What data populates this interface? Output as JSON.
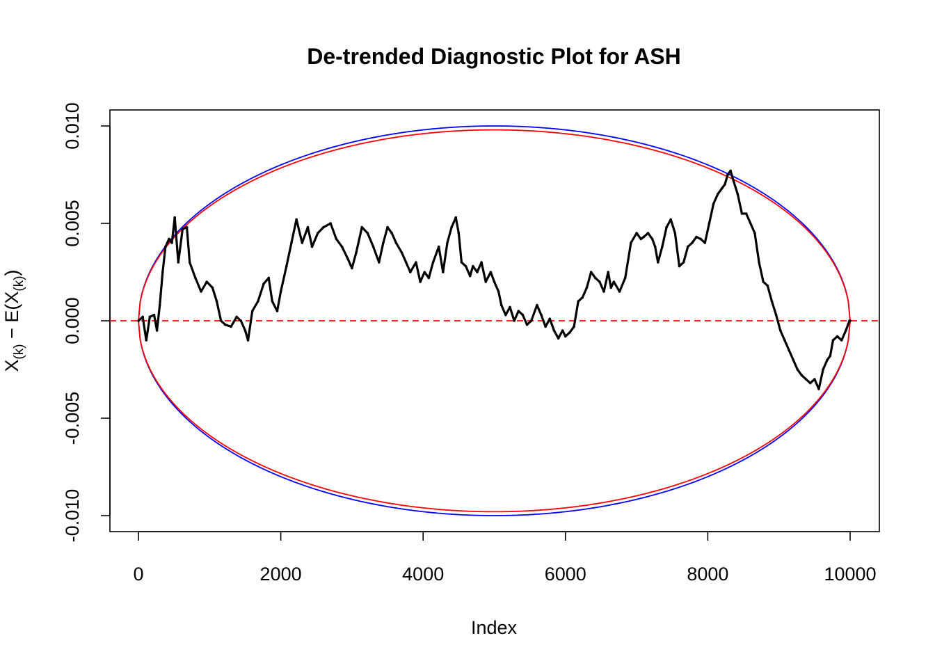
{
  "chart_data": {
    "type": "scatter",
    "title": "De-trended Diagnostic Plot for ASH",
    "xlabel": "Index",
    "ylabel": {
      "base": "X",
      "sub": "(k)",
      "minus": " − E(X",
      "sub2": "(k)",
      "close": ")"
    },
    "xlim": [
      -200,
      10200
    ],
    "ylim": [
      -0.0108,
      0.0108
    ],
    "x_ticks": [
      0,
      2000,
      4000,
      6000,
      8000,
      10000
    ],
    "x_tick_labels": [
      "0",
      "2000",
      "4000",
      "6000",
      "8000",
      "10000"
    ],
    "y_ticks": [
      -0.01,
      -0.005,
      0,
      0.005,
      0.01
    ],
    "y_tick_labels": [
      "-0.010",
      "-0.005",
      "0.000",
      "0.005",
      "0.010"
    ],
    "grid": false,
    "legend": "none",
    "n_points": 10000,
    "reference_line": {
      "y": 0,
      "style": "dashed",
      "color": "#ff0000"
    },
    "envelopes": [
      {
        "color": "#0000ff",
        "half_width": 0.01
      },
      {
        "color": "#ff0000",
        "half_width": 0.0098
      }
    ],
    "series": [
      {
        "color": "#000000",
        "x": [
          0,
          60,
          110,
          160,
          220,
          260,
          300,
          340,
          380,
          430,
          470,
          510,
          560,
          620,
          680,
          720,
          800,
          880,
          960,
          1040,
          1100,
          1160,
          1220,
          1300,
          1380,
          1440,
          1500,
          1540,
          1600,
          1680,
          1760,
          1830,
          1880,
          1950,
          2000,
          2080,
          2150,
          2220,
          2300,
          2380,
          2440,
          2520,
          2600,
          2700,
          2780,
          2860,
          2940,
          3000,
          3060,
          3140,
          3220,
          3300,
          3380,
          3440,
          3500,
          3560,
          3620,
          3700,
          3760,
          3820,
          3900,
          3960,
          4020,
          4080,
          4140,
          4220,
          4280,
          4340,
          4400,
          4460,
          4500,
          4540,
          4600,
          4660,
          4700,
          4760,
          4820,
          4880,
          4950,
          5000,
          5060,
          5100,
          5160,
          5220,
          5280,
          5340,
          5400,
          5460,
          5520,
          5600,
          5660,
          5720,
          5780,
          5840,
          5900,
          5960,
          6000,
          6060,
          6120,
          6180,
          6240,
          6300,
          6360,
          6420,
          6480,
          6540,
          6600,
          6640,
          6680,
          6760,
          6840,
          6920,
          7000,
          7060,
          7100,
          7160,
          7220,
          7260,
          7300,
          7360,
          7420,
          7480,
          7540,
          7600,
          7660,
          7720,
          7780,
          7840,
          7900,
          7960,
          8020,
          8080,
          8140,
          8200,
          8240,
          8280,
          8320,
          8360,
          8420,
          8480,
          8540,
          8600,
          8660,
          8720,
          8780,
          8840,
          8900,
          8960,
          9020,
          9080,
          9140,
          9200,
          9260,
          9320,
          9380,
          9440,
          9500,
          9560,
          9620,
          9680,
          9720,
          9760,
          9820,
          9880,
          9940,
          9990,
          10000
        ],
        "y": [
          0.0,
          0.0002,
          -0.001,
          0.0002,
          0.0003,
          -0.0005,
          0.0008,
          0.0025,
          0.0038,
          0.0042,
          0.004,
          0.0053,
          0.003,
          0.0047,
          0.0048,
          0.003,
          0.0022,
          0.0015,
          0.002,
          0.0017,
          0.001,
          0.0,
          -0.0002,
          -0.0003,
          0.0002,
          0.0,
          -0.0005,
          -0.001,
          0.0005,
          0.001,
          0.0019,
          0.0022,
          0.001,
          0.0005,
          0.0015,
          0.0028,
          0.004,
          0.0052,
          0.004,
          0.0048,
          0.0038,
          0.0045,
          0.0048,
          0.005,
          0.0042,
          0.0038,
          0.0032,
          0.0027,
          0.0035,
          0.0048,
          0.0045,
          0.0038,
          0.003,
          0.004,
          0.0048,
          0.0045,
          0.004,
          0.0035,
          0.003,
          0.0025,
          0.003,
          0.002,
          0.0025,
          0.0022,
          0.003,
          0.0038,
          0.0025,
          0.004,
          0.0048,
          0.0053,
          0.0045,
          0.003,
          0.0028,
          0.0023,
          0.0028,
          0.0025,
          0.003,
          0.002,
          0.0025,
          0.002,
          0.0015,
          0.0008,
          0.0003,
          0.0007,
          0.0,
          0.0005,
          0.0003,
          -0.0002,
          0.0,
          0.0008,
          0.0003,
          -0.0003,
          0.0001,
          -0.0005,
          -0.0009,
          -0.0005,
          -0.0008,
          -0.0006,
          -0.0003,
          0.001,
          0.0012,
          0.0017,
          0.0025,
          0.0022,
          0.002,
          0.0015,
          0.0025,
          0.0017,
          0.002,
          0.0015,
          0.0022,
          0.004,
          0.0045,
          0.0042,
          0.0043,
          0.0045,
          0.0042,
          0.0038,
          0.003,
          0.0038,
          0.0048,
          0.0052,
          0.0045,
          0.0028,
          0.003,
          0.0038,
          0.004,
          0.0043,
          0.0042,
          0.004,
          0.005,
          0.006,
          0.0065,
          0.0068,
          0.007,
          0.0075,
          0.0077,
          0.0072,
          0.0065,
          0.0055,
          0.0055,
          0.005,
          0.0045,
          0.003,
          0.002,
          0.0018,
          0.001,
          0.0003,
          -0.0005,
          -0.001,
          -0.0015,
          -0.002,
          -0.0025,
          -0.0028,
          -0.003,
          -0.0032,
          -0.003,
          -0.0035,
          -0.0025,
          -0.002,
          -0.0018,
          -0.001,
          -0.0008,
          -0.001,
          -0.0005,
          0.0,
          0.0
        ]
      }
    ]
  }
}
